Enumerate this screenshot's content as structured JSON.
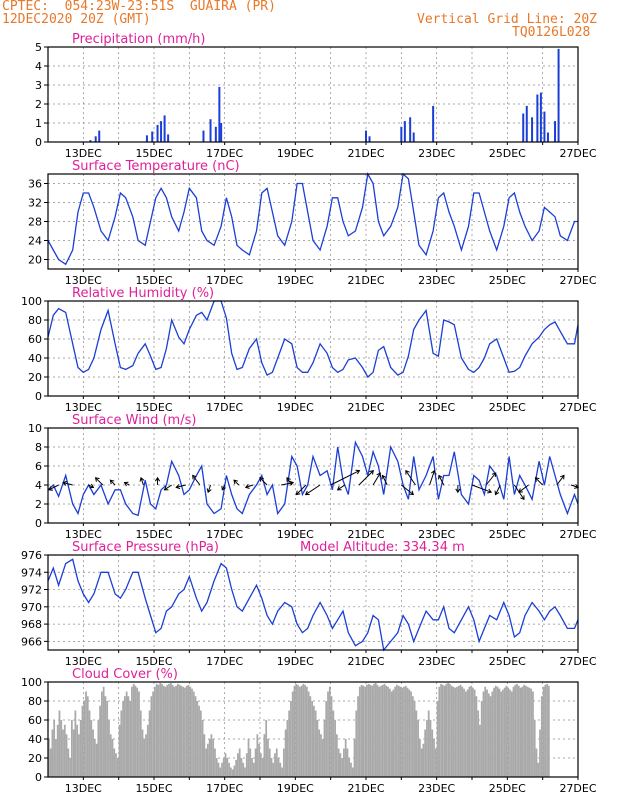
{
  "header": {
    "line1": "CPTEC:  054:23W-23:51S  GUAIRA (PR)",
    "line2": "12DEC2020 20Z (GMT)",
    "grid_note": "Vertical Grid Line: 20Z",
    "code": "TQ0126L028"
  },
  "colors": {
    "header": "#e8782a",
    "title": "#e0209a",
    "line": "#1b3fd6",
    "bar": "#1b3fd6",
    "cloud": "#a9a9a9",
    "arrow": "#000000",
    "grid": "#8a8a8a"
  },
  "x_tick_labels": [
    "13DEC",
    "15DEC",
    "17DEC",
    "19DEC",
    "21DEC",
    "23DEC",
    "25DEC",
    "27DEC"
  ],
  "chart_data": [
    {
      "type": "bar",
      "title": "Precipitation (mm/h)",
      "ylim": [
        0,
        5
      ],
      "yticks": [
        "0",
        "1",
        "2",
        "3",
        "4",
        "5"
      ],
      "x": [
        "13.2",
        "13.35",
        "13.45",
        "14.8",
        "14.95",
        "15.1",
        "15.2",
        "15.3",
        "15.4",
        "16.4",
        "16.6",
        "16.75",
        "16.85",
        "16.9",
        "21.0",
        "21.1",
        "22.0",
        "22.1",
        "22.25",
        "22.35",
        "22.9",
        "25.45",
        "25.55",
        "25.7",
        "25.85",
        "25.95",
        "26.05",
        "26.15",
        "26.35",
        "26.45"
      ],
      "values": [
        0.1,
        0.3,
        0.6,
        0.35,
        0.55,
        0.9,
        1.1,
        1.4,
        0.4,
        0.6,
        1.2,
        0.8,
        2.9,
        1.0,
        0.6,
        0.3,
        0.8,
        1.1,
        1.3,
        0.5,
        1.9,
        1.5,
        1.9,
        1.3,
        2.5,
        2.6,
        1.6,
        0.5,
        1.1,
        4.9
      ]
    },
    {
      "type": "line",
      "title": "Surface Temperature (nC)",
      "ylim": [
        18,
        38
      ],
      "yticks": [
        "20",
        "24",
        "28",
        "32",
        "36"
      ],
      "x": [
        12.0,
        12.15,
        12.3,
        12.5,
        12.7,
        12.85,
        13.0,
        13.15,
        13.3,
        13.5,
        13.7,
        13.9,
        14.05,
        14.2,
        14.4,
        14.55,
        14.75,
        14.9,
        15.05,
        15.2,
        15.35,
        15.5,
        15.7,
        15.85,
        16.0,
        16.2,
        16.35,
        16.5,
        16.7,
        16.9,
        17.05,
        17.2,
        17.35,
        17.5,
        17.7,
        17.9,
        18.05,
        18.2,
        18.35,
        18.5,
        18.7,
        18.9,
        19.05,
        19.2,
        19.35,
        19.5,
        19.7,
        19.9,
        20.05,
        20.2,
        20.35,
        20.5,
        20.7,
        20.9,
        21.05,
        21.2,
        21.35,
        21.5,
        21.7,
        21.9,
        22.05,
        22.2,
        22.35,
        22.5,
        22.7,
        22.9,
        23.05,
        23.2,
        23.35,
        23.5,
        23.7,
        23.9,
        24.05,
        24.2,
        24.35,
        24.5,
        24.7,
        24.9,
        25.05,
        25.2,
        25.35,
        25.5,
        25.7,
        25.9,
        26.05,
        26.2,
        26.35,
        26.5,
        26.7,
        26.9,
        27.0
      ],
      "values": [
        24,
        22,
        20,
        19,
        22,
        30,
        34,
        34,
        31,
        26,
        24,
        29,
        34,
        33,
        29,
        24,
        23,
        28,
        33,
        35,
        33,
        29,
        26,
        30,
        35,
        33,
        26,
        24,
        23,
        27,
        33,
        29,
        23,
        22,
        21,
        26,
        34,
        35,
        30,
        25,
        23,
        28,
        36,
        36,
        30,
        24,
        22,
        27,
        33,
        33,
        28,
        25,
        26,
        31,
        38,
        36,
        28,
        25,
        27,
        31,
        38,
        37,
        30,
        23,
        21,
        26,
        33,
        34,
        30,
        27,
        22,
        27,
        34,
        34,
        30,
        26,
        22,
        27,
        33,
        34,
        30,
        27,
        24,
        26,
        31,
        30,
        29,
        25,
        24,
        28,
        28
      ],
      "color": "#1b3fd6"
    },
    {
      "type": "line",
      "title": "Relative Humidity (%)",
      "ylim": [
        0,
        100
      ],
      "yticks": [
        "0",
        "20",
        "40",
        "60",
        "80",
        "100"
      ],
      "x": [
        12.0,
        12.15,
        12.3,
        12.5,
        12.7,
        12.85,
        13.0,
        13.15,
        13.3,
        13.5,
        13.7,
        13.9,
        14.05,
        14.2,
        14.4,
        14.55,
        14.75,
        14.9,
        15.05,
        15.2,
        15.35,
        15.5,
        15.7,
        15.85,
        16.0,
        16.2,
        16.35,
        16.5,
        16.7,
        16.9,
        17.05,
        17.2,
        17.35,
        17.5,
        17.7,
        17.9,
        18.05,
        18.2,
        18.35,
        18.5,
        18.7,
        18.9,
        19.05,
        19.2,
        19.35,
        19.5,
        19.7,
        19.9,
        20.05,
        20.2,
        20.35,
        20.5,
        20.7,
        20.9,
        21.05,
        21.2,
        21.35,
        21.5,
        21.7,
        21.9,
        22.05,
        22.2,
        22.35,
        22.5,
        22.7,
        22.9,
        23.05,
        23.2,
        23.35,
        23.5,
        23.7,
        23.9,
        24.05,
        24.2,
        24.35,
        24.5,
        24.7,
        24.9,
        25.05,
        25.2,
        25.35,
        25.5,
        25.7,
        25.9,
        26.05,
        26.2,
        26.35,
        26.5,
        26.7,
        26.9,
        27.0
      ],
      "values": [
        62,
        85,
        92,
        88,
        55,
        30,
        25,
        28,
        40,
        70,
        90,
        55,
        30,
        28,
        32,
        45,
        55,
        42,
        28,
        30,
        50,
        80,
        62,
        55,
        70,
        85,
        88,
        80,
        100,
        100,
        82,
        45,
        28,
        30,
        50,
        60,
        35,
        22,
        25,
        40,
        60,
        55,
        30,
        25,
        25,
        35,
        55,
        45,
        30,
        25,
        28,
        38,
        40,
        30,
        20,
        25,
        48,
        52,
        30,
        22,
        25,
        42,
        70,
        80,
        90,
        45,
        42,
        80,
        78,
        75,
        40,
        28,
        25,
        30,
        40,
        55,
        60,
        40,
        25,
        26,
        30,
        42,
        55,
        62,
        70,
        75,
        78,
        68,
        55,
        55,
        75
      ],
      "color": "#1b3fd6"
    },
    {
      "type": "line",
      "title": "Surface Wind (m/s)",
      "ylim": [
        0,
        10
      ],
      "yticks": [
        "0",
        "2",
        "4",
        "6",
        "8",
        "10"
      ],
      "x": [
        12.0,
        12.15,
        12.3,
        12.5,
        12.7,
        12.85,
        13.0,
        13.15,
        13.3,
        13.5,
        13.7,
        13.9,
        14.05,
        14.2,
        14.4,
        14.55,
        14.75,
        14.9,
        15.05,
        15.2,
        15.35,
        15.5,
        15.7,
        15.85,
        16.0,
        16.2,
        16.35,
        16.5,
        16.7,
        16.9,
        17.05,
        17.2,
        17.35,
        17.5,
        17.7,
        17.9,
        18.05,
        18.2,
        18.35,
        18.5,
        18.7,
        18.9,
        19.05,
        19.2,
        19.35,
        19.5,
        19.7,
        19.9,
        20.05,
        20.2,
        20.35,
        20.5,
        20.7,
        20.9,
        21.05,
        21.2,
        21.35,
        21.5,
        21.7,
        21.9,
        22.05,
        22.2,
        22.35,
        22.5,
        22.7,
        22.9,
        23.05,
        23.2,
        23.35,
        23.5,
        23.7,
        23.9,
        24.05,
        24.2,
        24.35,
        24.5,
        24.7,
        24.9,
        25.05,
        25.2,
        25.35,
        25.5,
        25.7,
        25.9,
        26.05,
        26.2,
        26.35,
        26.5,
        26.7,
        26.9,
        27.0
      ],
      "values": [
        3.5,
        4.0,
        2.8,
        5.0,
        2.0,
        1.0,
        3.0,
        4.0,
        3.0,
        4.0,
        2.0,
        3.5,
        3.5,
        2.0,
        1.0,
        0.8,
        4.5,
        2.0,
        1.5,
        3.5,
        4.0,
        6.5,
        5.0,
        3.0,
        3.5,
        5.0,
        6.0,
        2.0,
        1.0,
        1.5,
        5.0,
        3.0,
        1.5,
        1.0,
        3.0,
        4.0,
        5.0,
        3.0,
        4.0,
        1.0,
        2.0,
        7.0,
        6.0,
        3.0,
        4.0,
        7.0,
        5.0,
        5.5,
        3.5,
        8.0,
        4.5,
        3.0,
        8.5,
        7.0,
        5.0,
        7.5,
        6.0,
        3.0,
        8.0,
        6.5,
        4.0,
        2.5,
        7.0,
        3.5,
        5.0,
        7.0,
        2.5,
        5.0,
        5.0,
        7.5,
        3.0,
        2.0,
        5.0,
        4.5,
        3.0,
        6.0,
        5.0,
        2.5,
        7.0,
        3.0,
        5.0,
        4.0,
        2.5,
        6.5,
        4.0,
        7.0,
        5.0,
        3.0,
        1.0,
        3.0,
        2.0
      ],
      "color": "#1b3fd6",
      "wind_arrows": {
        "x": [
          12.3,
          12.7,
          13.15,
          13.55,
          13.9,
          14.3,
          14.7,
          15.1,
          15.5,
          15.9,
          16.3,
          16.6,
          17.0,
          17.4,
          17.8,
          18.2,
          18.6,
          18.9,
          19.3,
          19.7,
          20.0,
          20.4,
          20.8,
          21.2,
          21.6,
          22.0,
          22.4,
          22.8,
          23.2,
          23.6,
          24.0,
          24.4,
          24.8,
          25.2,
          25.6,
          26.0,
          26.4,
          26.8
        ],
        "u": [
          -4,
          -4,
          2,
          -3,
          -2,
          -2,
          -1,
          0,
          -3,
          -4,
          -3,
          -1,
          -1,
          -2,
          -3,
          -3,
          5,
          -2,
          -4,
          -6,
          12,
          -3,
          6,
          3,
          -2,
          5,
          -4,
          2,
          -2,
          0,
          8,
          4,
          -2,
          4,
          -4,
          -3,
          3,
          3
        ],
        "v": [
          -2,
          1,
          -1,
          3,
          2,
          1,
          3,
          3,
          -2,
          -1,
          4,
          -3,
          -2,
          2,
          -1,
          3,
          1,
          3,
          -4,
          -4,
          6,
          -2,
          6,
          5,
          4,
          -4,
          6,
          6,
          4,
          -3,
          -3,
          5,
          -4,
          -6,
          -3,
          3,
          4,
          -1
        ]
      }
    },
    {
      "type": "line",
      "title": "Surface Pressure (hPa)",
      "subtitle": "Model Altitude: 334.34 m",
      "ylim": [
        965,
        976
      ],
      "yticks": [
        "966",
        "968",
        "970",
        "972",
        "974",
        "976"
      ],
      "x": [
        12.0,
        12.15,
        12.3,
        12.5,
        12.7,
        12.85,
        13.0,
        13.15,
        13.3,
        13.5,
        13.7,
        13.9,
        14.05,
        14.2,
        14.4,
        14.55,
        14.75,
        14.9,
        15.05,
        15.2,
        15.35,
        15.5,
        15.7,
        15.85,
        16.0,
        16.2,
        16.35,
        16.5,
        16.7,
        16.9,
        17.05,
        17.2,
        17.35,
        17.5,
        17.7,
        17.9,
        18.05,
        18.2,
        18.35,
        18.5,
        18.7,
        18.9,
        19.05,
        19.2,
        19.35,
        19.5,
        19.7,
        19.9,
        20.05,
        20.2,
        20.35,
        20.5,
        20.7,
        20.9,
        21.05,
        21.2,
        21.35,
        21.5,
        21.7,
        21.9,
        22.05,
        22.2,
        22.35,
        22.5,
        22.7,
        22.9,
        23.05,
        23.2,
        23.35,
        23.5,
        23.7,
        23.9,
        24.05,
        24.2,
        24.35,
        24.5,
        24.7,
        24.9,
        25.05,
        25.2,
        25.35,
        25.5,
        25.7,
        25.9,
        26.05,
        26.2,
        26.35,
        26.5,
        26.7,
        26.9,
        27.0
      ],
      "values": [
        973,
        974.5,
        972.5,
        975,
        975.5,
        973,
        971.5,
        970.5,
        971.5,
        974,
        974,
        971.5,
        971,
        972,
        974,
        974,
        971,
        969,
        967,
        967.5,
        969.5,
        970,
        971.5,
        972,
        973.5,
        971,
        969.5,
        970.5,
        973,
        975,
        974.5,
        972,
        970,
        969.5,
        971,
        972.5,
        971,
        969,
        968,
        969.5,
        970.5,
        970,
        968,
        967,
        967.5,
        969,
        970.5,
        969,
        967.5,
        968.5,
        969.5,
        967,
        965.5,
        966,
        967,
        969,
        968.5,
        965,
        966,
        967,
        969,
        968,
        966,
        967.5,
        969.5,
        968.5,
        968.5,
        970,
        967.5,
        967,
        968.5,
        970,
        968.5,
        966,
        967.5,
        969,
        968.5,
        970.5,
        969,
        966.5,
        967,
        969,
        970.5,
        969.5,
        968.5,
        969.5,
        970,
        969,
        967.5,
        967.5,
        968.5
      ],
      "color": "#1b3fd6"
    },
    {
      "type": "bar",
      "title": "Cloud Cover (%)",
      "ylim": [
        0,
        100
      ],
      "yticks": [
        "0",
        "20",
        "40",
        "60",
        "80",
        "100"
      ],
      "x_start": 12.0,
      "x_step": 0.05,
      "values": [
        40,
        30,
        50,
        60,
        40,
        55,
        70,
        60,
        50,
        55,
        45,
        30,
        20,
        60,
        50,
        70,
        55,
        45,
        60,
        75,
        80,
        90,
        85,
        70,
        60,
        50,
        40,
        35,
        60,
        75,
        90,
        95,
        85,
        80,
        60,
        45,
        40,
        30,
        25,
        20,
        55,
        70,
        80,
        85,
        90,
        85,
        80,
        95,
        98,
        96,
        94,
        90,
        70,
        50,
        40,
        45,
        55,
        70,
        85,
        90,
        95,
        98,
        97,
        99,
        98,
        96,
        95,
        97,
        98,
        99,
        97,
        95,
        96,
        98,
        97,
        96,
        95,
        94,
        96,
        97,
        95,
        93,
        90,
        85,
        80,
        75,
        70,
        60,
        45,
        30,
        35,
        40,
        45,
        40,
        30,
        20,
        15,
        10,
        15,
        20,
        25,
        20,
        15,
        10,
        8,
        12,
        18,
        25,
        30,
        20,
        15,
        10,
        25,
        40,
        30,
        20,
        15,
        30,
        45,
        35,
        25,
        20,
        45,
        60,
        40,
        30,
        20,
        15,
        25,
        30,
        20,
        15,
        10,
        30,
        50,
        60,
        70,
        80,
        90,
        96,
        98,
        97,
        95,
        96,
        98,
        97,
        95,
        90,
        85,
        80,
        75,
        70,
        60,
        50,
        45,
        40,
        60,
        80,
        90,
        95,
        85,
        70,
        60,
        45,
        30,
        25,
        20,
        30,
        40,
        30,
        20,
        15,
        10,
        40,
        70,
        85,
        95,
        97,
        96,
        95,
        97,
        98,
        97,
        96,
        98,
        99,
        97,
        95,
        96,
        97,
        98,
        96,
        95,
        93,
        90,
        92,
        95,
        97,
        96,
        95,
        94,
        95,
        96,
        94,
        92,
        90,
        85,
        80,
        70,
        60,
        40,
        30,
        35,
        50,
        60,
        70,
        60,
        50,
        40,
        30,
        80,
        95,
        98,
        97,
        96,
        98,
        99,
        98,
        96,
        95,
        94,
        95,
        96,
        97,
        95,
        93,
        90,
        92,
        95,
        96,
        94,
        92,
        85,
        70,
        55,
        80,
        90,
        95,
        92,
        88,
        85,
        90,
        94,
        96,
        95,
        93,
        90,
        92,
        94,
        96,
        94,
        92,
        90,
        95,
        97,
        98,
        96,
        94,
        95,
        97,
        96,
        95,
        94,
        93,
        90,
        60,
        30,
        15,
        50,
        85,
        95,
        97,
        98,
        96
      ]
    }
  ]
}
